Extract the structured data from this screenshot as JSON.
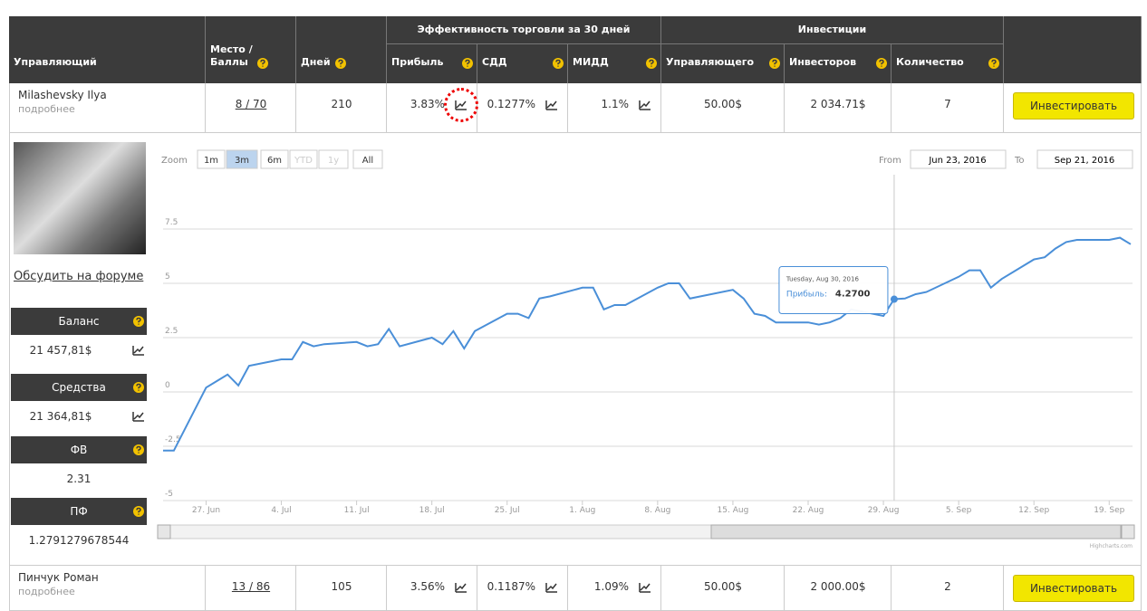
{
  "table": {
    "group_headers": [
      "Эффективность торговли за 30 дней",
      "Инвестиции"
    ],
    "columns": [
      "Управляющий",
      "Место / Баллы",
      "Дней",
      "Прибыль",
      "СДД",
      "МИДД",
      "Управляющего",
      "Инвесторов",
      "Количество"
    ],
    "rows": [
      {
        "name": "Milashevsky Ilya",
        "details": "подробнее",
        "cells": [
          "8 / 70",
          "210",
          "3.83%",
          "0.1277%",
          "1.1%",
          "50.00$",
          "2 034.71$",
          "7"
        ],
        "action": "Инвестировать"
      },
      {
        "name": "Пинчук Роман",
        "details": "подробнее",
        "cells": [
          "13 / 86",
          "105",
          "3.56%",
          "0.1187%",
          "1.09%",
          "50.00$",
          "2 000.00$",
          "2"
        ],
        "action": "Инвестировать"
      }
    ]
  },
  "panel": {
    "forum_link": "Обсудить на форуме",
    "stats": [
      {
        "label": "Баланс",
        "value": "21 457,81$"
      },
      {
        "label": "Средства",
        "value": "21 364,81$"
      },
      {
        "label": "ФВ",
        "value": "2.31"
      },
      {
        "label": "ПФ",
        "value": "1.2791279678544"
      }
    ]
  },
  "chart": {
    "type": "line",
    "zoom_label": "Zoom",
    "zoom_buttons": [
      "1m",
      "3m",
      "6m",
      "YTD",
      "1y",
      "All"
    ],
    "zoom_selected": "3m",
    "from_label": "From",
    "from": "Jun 23, 2016",
    "to_label": "To",
    "to": "Sep 21, 2016",
    "x": [
      "2016-06-23",
      "2016-06-24",
      "2016-06-27",
      "2016-06-28",
      "2016-06-29",
      "2016-06-30",
      "2016-07-01",
      "2016-07-04",
      "2016-07-05",
      "2016-07-06",
      "2016-07-07",
      "2016-07-08",
      "2016-07-11",
      "2016-07-12",
      "2016-07-13",
      "2016-07-14",
      "2016-07-15",
      "2016-07-18",
      "2016-07-19",
      "2016-07-20",
      "2016-07-21",
      "2016-07-22",
      "2016-07-25",
      "2016-07-26",
      "2016-07-27",
      "2016-07-28",
      "2016-07-29",
      "2016-08-01",
      "2016-08-02",
      "2016-08-03",
      "2016-08-04",
      "2016-08-05",
      "2016-08-08",
      "2016-08-09",
      "2016-08-10",
      "2016-08-11",
      "2016-08-12",
      "2016-08-15",
      "2016-08-16",
      "2016-08-17",
      "2016-08-18",
      "2016-08-19",
      "2016-08-22",
      "2016-08-23",
      "2016-08-24",
      "2016-08-25",
      "2016-08-26",
      "2016-08-29",
      "2016-08-30",
      "2016-08-31",
      "2016-09-01",
      "2016-09-02",
      "2016-09-05",
      "2016-09-06",
      "2016-09-07",
      "2016-09-08",
      "2016-09-09",
      "2016-09-12",
      "2016-09-13",
      "2016-09-14",
      "2016-09-15",
      "2016-09-16",
      "2016-09-19",
      "2016-09-20",
      "2016-09-21"
    ],
    "series": [
      {
        "name": "Прибыль",
        "color": "#4a8fd8",
        "values": [
          -2.7,
          -2.7,
          0.2,
          0.5,
          0.8,
          0.3,
          1.2,
          1.5,
          1.5,
          2.3,
          2.1,
          2.2,
          2.3,
          2.1,
          2.2,
          2.9,
          2.1,
          2.5,
          2.2,
          2.8,
          2.0,
          2.8,
          3.6,
          3.6,
          3.4,
          4.3,
          4.4,
          4.8,
          4.8,
          3.8,
          4.0,
          4.0,
          4.8,
          5.0,
          5.0,
          4.3,
          4.4,
          4.7,
          4.3,
          3.6,
          3.5,
          3.2,
          3.2,
          3.1,
          3.2,
          3.4,
          3.8,
          3.5,
          4.27,
          4.3,
          4.5,
          4.6,
          5.3,
          5.6,
          5.6,
          4.8,
          5.2,
          6.1,
          6.2,
          6.6,
          6.9,
          7.0,
          7.0,
          7.1,
          6.8
        ]
      }
    ],
    "xlim": [
      "2016-06-23",
      "2016-09-21"
    ],
    "ylim": [
      -5,
      10
    ],
    "yticks": [
      -5,
      -2.5,
      0,
      2.5,
      5,
      7.5
    ],
    "xticks": [
      {
        "value": "2016-06-27",
        "label": "27. Jun"
      },
      {
        "value": "2016-07-04",
        "label": "4. Jul"
      },
      {
        "value": "2016-07-11",
        "label": "11. Jul"
      },
      {
        "value": "2016-07-18",
        "label": "18. Jul"
      },
      {
        "value": "2016-07-25",
        "label": "25. Jul"
      },
      {
        "value": "2016-08-01",
        "label": "1. Aug"
      },
      {
        "value": "2016-08-08",
        "label": "8. Aug"
      },
      {
        "value": "2016-08-15",
        "label": "15. Aug"
      },
      {
        "value": "2016-08-22",
        "label": "22. Aug"
      },
      {
        "value": "2016-08-29",
        "label": "29. Aug"
      },
      {
        "value": "2016-09-05",
        "label": "5. Sep"
      },
      {
        "value": "2016-09-12",
        "label": "12. Sep"
      },
      {
        "value": "2016-09-19",
        "label": "19. Sep"
      }
    ],
    "grid": true,
    "tooltip": {
      "date": "Tuesday, Aug 30, 2016",
      "label": "Прибыль:",
      "value": "4.2700",
      "index": 48
    },
    "credits": "Highcharts.com"
  }
}
